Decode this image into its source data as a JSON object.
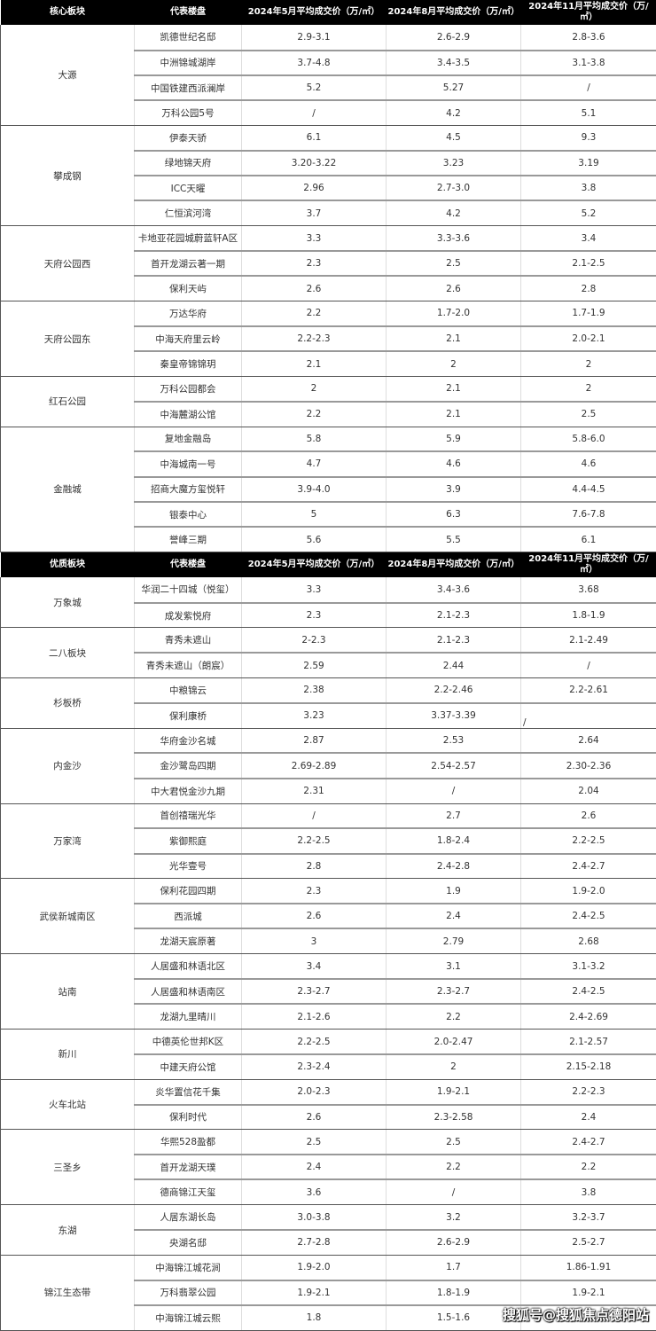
{
  "sections": [
    {
      "headers": [
        "核心板块",
        "代表楼盘",
        "2024年5月平均成交价（万/㎡）",
        "2024年8月平均成交价（万/㎡）",
        "2024年11月平均成交价（万/㎡）"
      ],
      "groups": [
        {
          "name": "大源",
          "rows": [
            [
              "凯德世纪名邸",
              "2.9-3.1",
              "2.6-2.9",
              "2.8-3.6"
            ],
            [
              "中洲锦城湖岸",
              "3.7-4.8",
              "3.4-3.5",
              "3.1-3.8"
            ],
            [
              "中国铁建西派澜岸",
              "5.2",
              "5.27",
              "/"
            ],
            [
              "万科公园5号",
              "/",
              "4.2",
              "5.1"
            ]
          ]
        },
        {
          "name": "攀成钢",
          "rows": [
            [
              "伊泰天骄",
              "6.1",
              "4.5",
              "9.3"
            ],
            [
              "绿地锦天府",
              "3.20-3.22",
              "3.23",
              "3.19"
            ],
            [
              "ICC天曜",
              "2.96",
              "2.7-3.0",
              "3.8"
            ],
            [
              "仁恒滨河湾",
              "3.7",
              "4.2",
              "5.2"
            ]
          ]
        },
        {
          "name": "天府公园西",
          "rows": [
            [
              "卡地亚花园城蔚蓝轩A区",
              "3.3",
              "3.3-3.6",
              "3.4"
            ],
            [
              "首开龙湖云著一期",
              "2.3",
              "2.5",
              "2.1-2.5"
            ],
            [
              "保利天屿",
              "2.6",
              "2.6",
              "2.8"
            ]
          ]
        },
        {
          "name": "天府公园东",
          "rows": [
            [
              "万达华府",
              "2.2",
              "1.7-2.0",
              "1.7-1.9"
            ],
            [
              "中海天府里云岭",
              "2.2-2.3",
              "2.1",
              "2.0-2.1"
            ],
            [
              "秦皇帝锦锦玥",
              "2.1",
              "2",
              "2"
            ]
          ]
        },
        {
          "name": "红石公园",
          "rows": [
            [
              "万科公园都会",
              "2",
              "2.1",
              "2"
            ],
            [
              "中海麓湖公馆",
              "2.2",
              "2.1",
              "2.5"
            ]
          ]
        },
        {
          "name": "金融城",
          "rows": [
            [
              "复地金融岛",
              "5.8",
              "5.9",
              "5.8-6.0"
            ],
            [
              "中海城南一号",
              "4.7",
              "4.6",
              "4.6"
            ],
            [
              "招商大魔方玺悦轩",
              "3.9-4.0",
              "3.9",
              "4.4-4.5"
            ],
            [
              "银泰中心",
              "5",
              "6.3",
              "7.6-7.8"
            ],
            [
              "誉峰三期",
              "5.6",
              "5.5",
              "6.1"
            ]
          ]
        }
      ]
    },
    {
      "headers": [
        "优质板块",
        "代表楼盘",
        "2024年5月平均成交价（万/㎡）",
        "2024年8月平均成交价（万/㎡）",
        "2024年11月平均成交价（万/㎡）"
      ],
      "groups": [
        {
          "name": "万象城",
          "rows": [
            [
              "华润二十四城（悦玺）",
              "3.3",
              "3.4-3.6",
              "3.68"
            ],
            [
              "成发紫悦府",
              "2.3",
              "2.1-2.3",
              "1.8-1.9"
            ]
          ]
        },
        {
          "name": "二八板块",
          "rows": [
            [
              "青秀未遮山",
              "2-2.3",
              "2.1-2.3",
              "2.1-2.49"
            ],
            [
              "青秀未遮山（朗宸）",
              "2.59",
              "2.44",
              "/"
            ]
          ]
        },
        {
          "name": "杉板桥",
          "rows": [
            [
              "中粮锦云",
              "2.38",
              "2.2-2.46",
              "2.2-2.61"
            ],
            [
              "保利康桥",
              "3.23",
              "3.37-3.39",
              "/"
            ]
          ]
        },
        {
          "name": "内金沙",
          "rows": [
            [
              "华府金沙名城",
              "2.87",
              "2.53",
              "2.64"
            ],
            [
              "金沙鹭岛四期",
              "2.69-2.89",
              "2.54-2.57",
              "2.30-2.36"
            ],
            [
              "中大君悦金沙九期",
              "2.31",
              "/",
              "2.04"
            ]
          ]
        },
        {
          "name": "万家湾",
          "rows": [
            [
              "首创禧瑞光华",
              "/",
              "2.7",
              "2.6"
            ],
            [
              "紫御熙庭",
              "2.2-2.5",
              "1.8-2.4",
              "2.2-2.5"
            ],
            [
              "光华壹号",
              "2.8",
              "2.4-2.8",
              "2.4-2.7"
            ]
          ]
        },
        {
          "name": "武侯新城南区",
          "rows": [
            [
              "保利花园四期",
              "2.3",
              "1.9",
              "1.9-2.0"
            ],
            [
              "西派城",
              "2.6",
              "2.4",
              "2.4-2.5"
            ],
            [
              "龙湖天宸原著",
              "3",
              "2.79",
              "2.68"
            ]
          ]
        },
        {
          "name": "站南",
          "rows": [
            [
              "人居盛和林语北区",
              "3.4",
              "3.1",
              "3.1-3.2"
            ],
            [
              "人居盛和林语南区",
              "2.3-2.7",
              "2.3-2.7",
              "2.4-2.5"
            ],
            [
              "龙湖九里晴川",
              "2.1-2.6",
              "2.2",
              "2.4-2.69"
            ]
          ]
        },
        {
          "name": "新川",
          "rows": [
            [
              "中德英伦世邦K区",
              "2.2-2.5",
              "2.0-2.47",
              "2.1-2.57"
            ],
            [
              "中建天府公馆",
              "2.3-2.4",
              "2",
              "2.15-2.18"
            ]
          ]
        },
        {
          "name": "火车北站",
          "rows": [
            [
              "炎华置信花千集",
              "2.0-2.3",
              "1.9-2.1",
              "2.2-2.3"
            ],
            [
              "保利时代",
              "2.6",
              "2.3-2.58",
              "2.4"
            ]
          ]
        },
        {
          "name": "三圣乡",
          "rows": [
            [
              "华熙528盈都",
              "2.5",
              "2.5",
              "2.4-2.7"
            ],
            [
              "首开龙湖天璞",
              "2.4",
              "2.2",
              "2.2"
            ],
            [
              "德商锦江天玺",
              "3.6",
              "/",
              "3.8"
            ]
          ]
        },
        {
          "name": "东湖",
          "rows": [
            [
              "人居东湖长岛",
              "3.0-3.8",
              "3.2",
              "3.2-3.7"
            ],
            [
              "央湖名邸",
              "2.7-2.8",
              "2.6-2.9",
              "2.5-2.7"
            ]
          ]
        },
        {
          "name": "锦江生态带",
          "rows": [
            [
              "中海锦江城花涧",
              "1.9-2.0",
              "1.7",
              "1.86-1.91"
            ],
            [
              "万科翡翠公园",
              "1.9-2.1",
              "1.8-1.9",
              "1.9-2.1"
            ],
            [
              "中海锦江城云熙",
              "1.8",
              "1.5-1.6",
              ""
            ]
          ]
        }
      ]
    }
  ],
  "watermark": "搜狐号@搜狐焦点德阳站"
}
